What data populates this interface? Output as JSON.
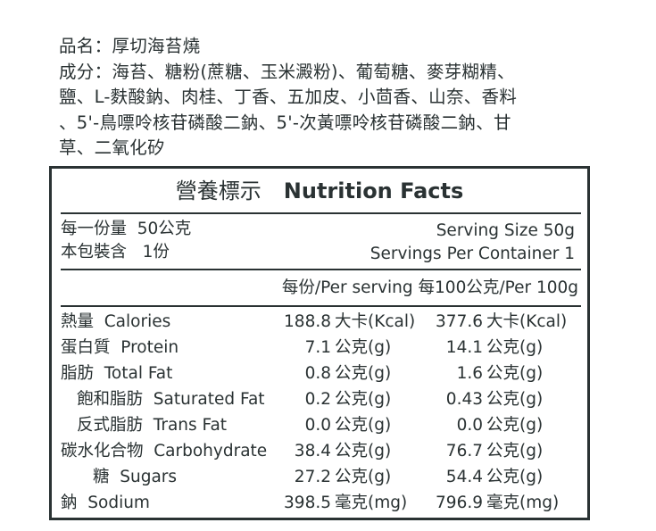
{
  "product": {
    "name_line": "品名：厚切海苔燒",
    "ingredients_lines": [
      "成分：海苔、糖粉(蔗糖、玉米澱粉)、葡萄糖、麥芽糊精、",
      "鹽、L-麩酸鈉、肉桂、丁香、五加皮、小茴香、山奈、香料",
      "、5'-鳥嘌呤核苷磷酸二鈉、5'-次黃嘌呤核苷磷酸二鈉、甘",
      "草、二氧化矽"
    ]
  },
  "label": {
    "title_zh": "營養標示",
    "title_en": "Nutrition Facts",
    "serving_size_zh": "每一份量  50公克",
    "serving_size_en": "Serving Size 50g",
    "servings_zh": "本包裝含   1份",
    "servings_en": "Servings Per Container 1",
    "col_header": "每份/Per serving 每100公克/Per 100g",
    "rows": [
      {
        "name": "熱量  Calories",
        "per_serving": "188.8",
        "unit1": "大卡(Kcal)",
        "per_100g": "377.6",
        "unit2": "大卡(Kcal)"
      },
      {
        "name": "蛋白質  Protein",
        "per_serving": "7.1",
        "unit1": "公克(g)",
        "per_100g": "14.1",
        "unit2": "公克(g)"
      },
      {
        "name": "脂肪  Total Fat",
        "per_serving": "0.8",
        "unit1": "公克(g)",
        "per_100g": "1.6",
        "unit2": "公克(g)"
      },
      {
        "name": "飽和脂肪  Saturated Fat",
        "per_serving": "0.2",
        "unit1": "公克(g)",
        "per_100g": "0.43",
        "unit2": "公克(g)"
      },
      {
        "name": "反式脂肪  Trans Fat",
        "per_serving": "0.0",
        "unit1": "公克(g)",
        "per_100g": "0.0",
        "unit2": "公克(g)"
      },
      {
        "name": "碳水化合物  Carbohydrate",
        "per_serving": "38.4",
        "unit1": "公克(g)",
        "per_100g": "76.7",
        "unit2": "公克(g)"
      },
      {
        "name": "糖  Sugars",
        "per_serving": "27.2",
        "unit1": "公克(g)",
        "per_100g": "54.4",
        "unit2": "公克(g)"
      },
      {
        "name": "鈉  Sodium",
        "per_serving": "398.5",
        "unit1": "毫克(mg)",
        "per_100g": "796.9",
        "unit2": "毫克(mg)"
      }
    ]
  }
}
